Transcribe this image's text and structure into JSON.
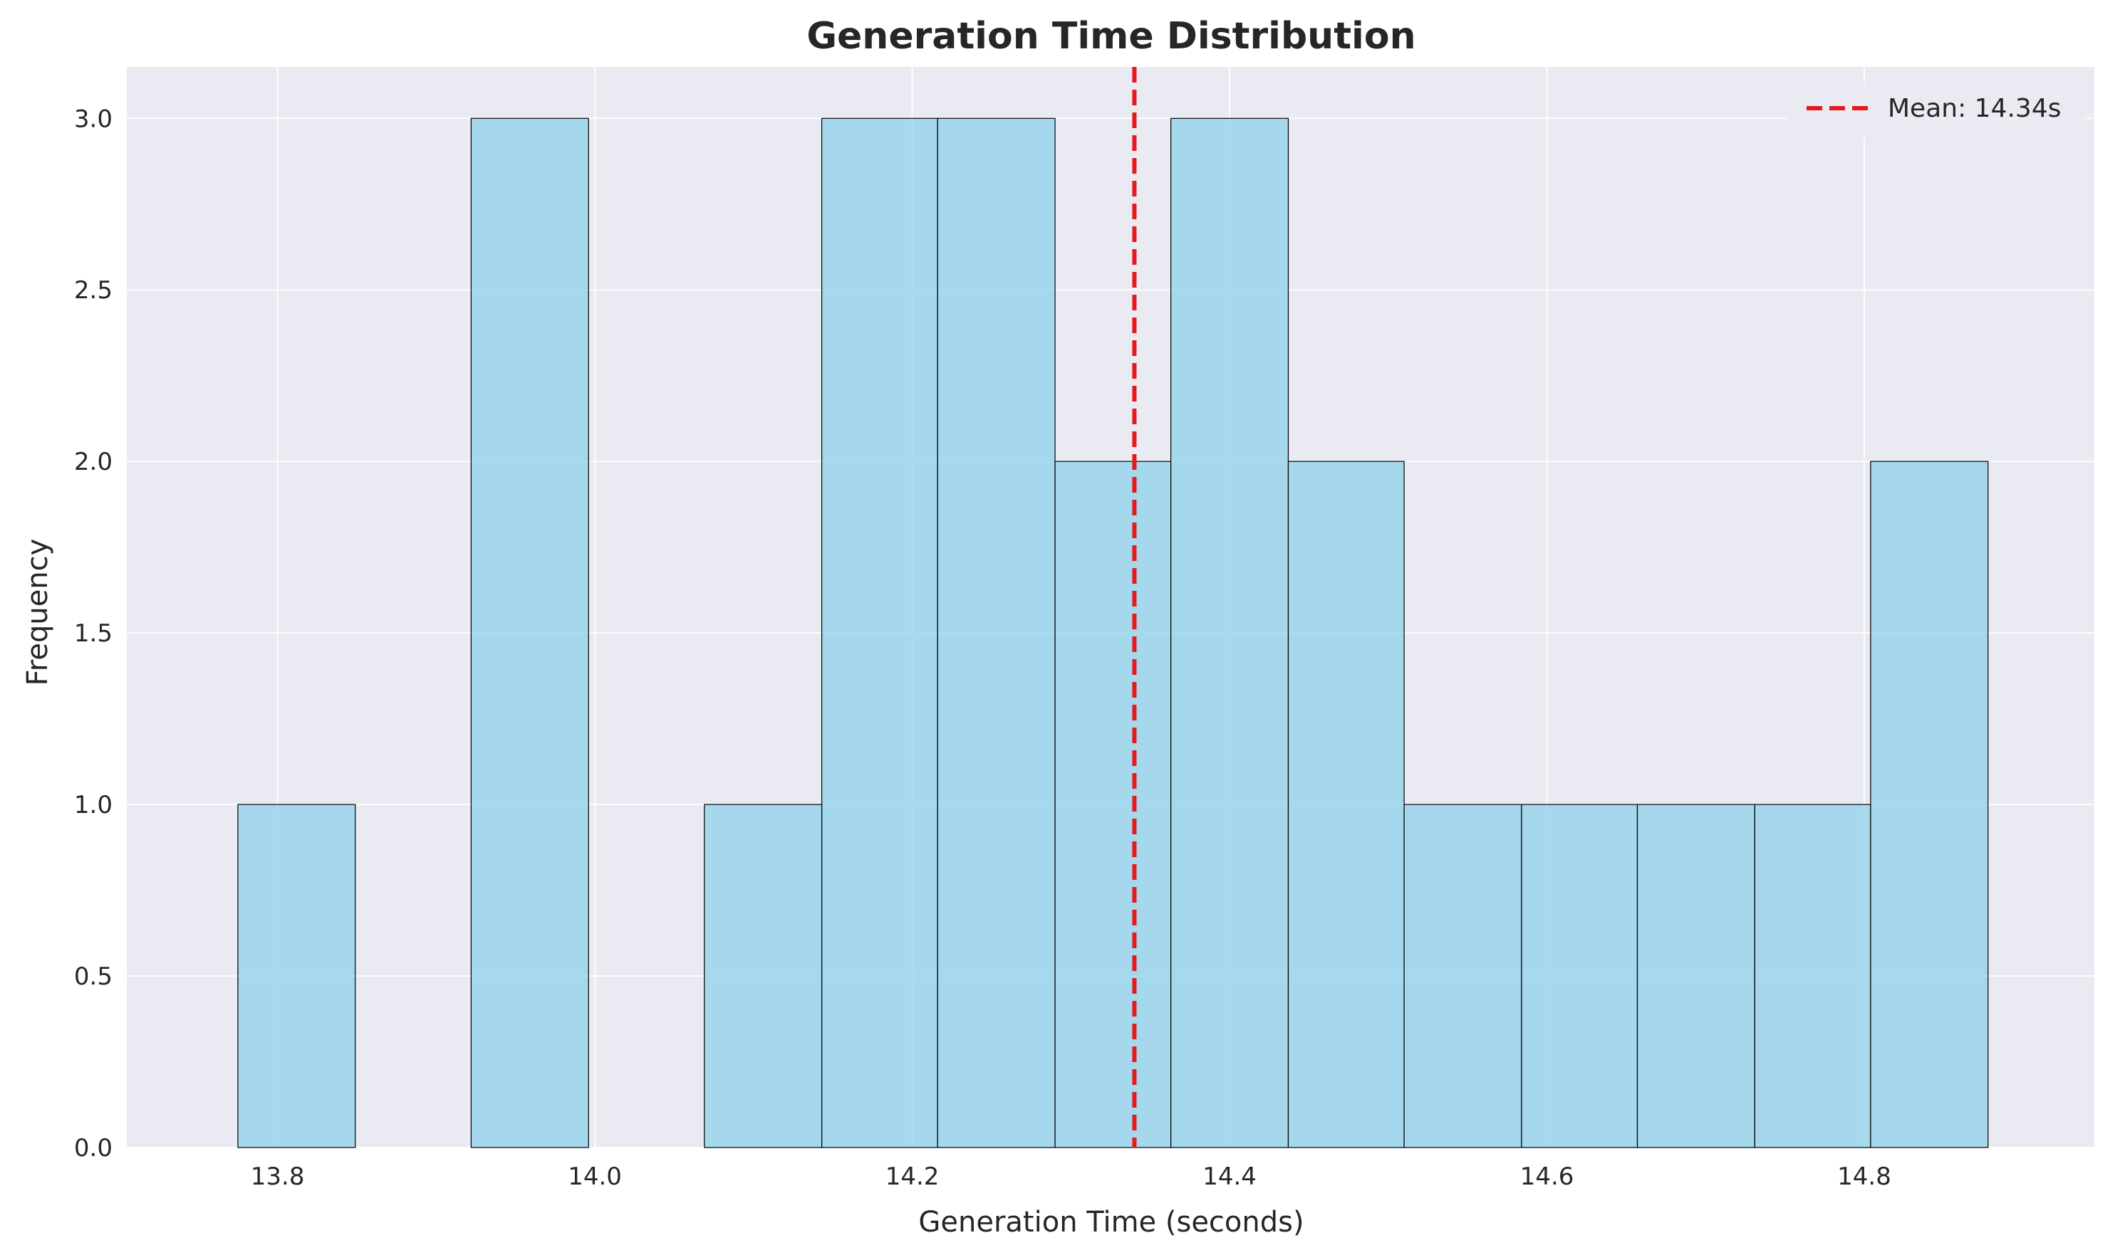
{
  "chart_data": {
    "type": "bar",
    "title": "Generation Time Distribution",
    "xlabel": "Generation Time (seconds)",
    "ylabel": "Frequency",
    "xlim": [
      13.705,
      14.945
    ],
    "ylim": [
      0,
      3.15
    ],
    "xticks": [
      13.8,
      14.0,
      14.2,
      14.4,
      14.6,
      14.8
    ],
    "xtick_labels": [
      "13.8",
      "14.0",
      "14.2",
      "14.4",
      "14.6",
      "14.8"
    ],
    "yticks": [
      0,
      0.5,
      1.0,
      1.5,
      2.0,
      2.5,
      3.0
    ],
    "ytick_labels": [
      "0.0",
      "0.5",
      "1.0",
      "1.5",
      "2.0",
      "2.5",
      "3.0"
    ],
    "bin_edges": [
      13.775,
      13.849,
      13.922,
      13.996,
      14.069,
      14.143,
      14.216,
      14.29,
      14.363,
      14.437,
      14.51,
      14.584,
      14.657,
      14.731,
      14.804,
      14.878
    ],
    "counts": [
      1,
      0,
      3,
      0,
      1,
      3,
      3,
      2,
      3,
      2,
      1,
      1,
      1,
      1,
      2
    ],
    "mean": 14.34,
    "mean_label": "Mean: 14.34s",
    "grid": true,
    "legend_position": "top-right",
    "colors": {
      "bar_fill": "#87ceeb",
      "bar_edge": "#000000",
      "mean_line": "#e41a1c",
      "plot_background": "#eaeaf2",
      "grid": "#ffffff"
    }
  }
}
